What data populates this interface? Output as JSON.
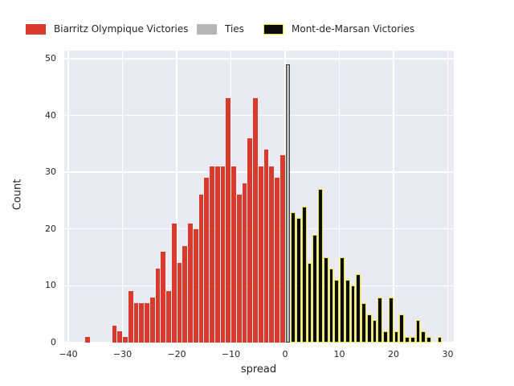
{
  "legend": {
    "items": [
      {
        "label": "Biarritz Olympique Victories"
      },
      {
        "label": "Ties"
      },
      {
        "label": "Mont-de-Marsan Victories"
      }
    ]
  },
  "axes": {
    "xlabel": "spread",
    "ylabel": "Count"
  },
  "chart_data": {
    "type": "bar",
    "subtype": "histogram",
    "title": "",
    "xlabel": "spread",
    "ylabel": "Count",
    "grid": true,
    "legend_position": "top",
    "plot_bg": "#eaeaf2",
    "grid_color": "#ffffff",
    "text_color": "#262626",
    "bin_width": 1,
    "x_is": "bin_left_edge_spread",
    "xlim": [
      -40.7,
      31.1
    ],
    "ylim": [
      0,
      51.4
    ],
    "xticks": [
      {
        "value": -40,
        "label": "−40"
      },
      {
        "value": -30,
        "label": "−30"
      },
      {
        "value": -20,
        "label": "−20"
      },
      {
        "value": -10,
        "label": "−10"
      },
      {
        "value": 0,
        "label": "0"
      },
      {
        "value": 10,
        "label": "10"
      },
      {
        "value": 20,
        "label": "20"
      },
      {
        "value": 30,
        "label": "30"
      }
    ],
    "yticks": [
      {
        "value": 0,
        "label": "0"
      },
      {
        "value": 10,
        "label": "10"
      },
      {
        "value": 20,
        "label": "20"
      },
      {
        "value": 30,
        "label": "30"
      },
      {
        "value": 40,
        "label": "40"
      },
      {
        "value": 50,
        "label": "50"
      }
    ],
    "series": [
      {
        "name": "Biarritz Olympique Victories",
        "fill": "#d83a2b",
        "edge": "#d83a2b",
        "bars": [
          [
            -37,
            1
          ],
          [
            -32,
            3
          ],
          [
            -31,
            2
          ],
          [
            -30,
            1
          ],
          [
            -29,
            9
          ],
          [
            -28,
            7
          ],
          [
            -27,
            7
          ],
          [
            -26,
            7
          ],
          [
            -25,
            8
          ],
          [
            -24,
            13
          ],
          [
            -23,
            16
          ],
          [
            -22,
            9
          ],
          [
            -21,
            21
          ],
          [
            -20,
            14
          ],
          [
            -19,
            17
          ],
          [
            -18,
            21
          ],
          [
            -17,
            20
          ],
          [
            -16,
            26
          ],
          [
            -15,
            29
          ],
          [
            -14,
            31
          ],
          [
            -13,
            31
          ],
          [
            -12,
            31
          ],
          [
            -11,
            43
          ],
          [
            -10,
            31
          ],
          [
            -9,
            26
          ],
          [
            -8,
            28
          ],
          [
            -7,
            36
          ],
          [
            -6,
            43
          ],
          [
            -5,
            31
          ],
          [
            -4,
            34
          ],
          [
            -3,
            31
          ],
          [
            -2,
            29
          ],
          [
            -1,
            33
          ]
        ]
      },
      {
        "name": "Ties",
        "fill": "#b6b6b6",
        "edge": "#3a3a3a",
        "bars": [
          [
            0,
            49
          ]
        ]
      },
      {
        "name": "Mont-de-Marsan Victories",
        "fill": "#0b0b0b",
        "edge": "#e9e331",
        "bars": [
          [
            1,
            23
          ],
          [
            2,
            22
          ],
          [
            3,
            24
          ],
          [
            4,
            14
          ],
          [
            5,
            19
          ],
          [
            6,
            27
          ],
          [
            7,
            15
          ],
          [
            8,
            13
          ],
          [
            9,
            11
          ],
          [
            10,
            15
          ],
          [
            11,
            11
          ],
          [
            12,
            10
          ],
          [
            13,
            12
          ],
          [
            14,
            7
          ],
          [
            15,
            5
          ],
          [
            16,
            4
          ],
          [
            17,
            8
          ],
          [
            18,
            2
          ],
          [
            19,
            8
          ],
          [
            20,
            2
          ],
          [
            21,
            5
          ],
          [
            22,
            1
          ],
          [
            23,
            1
          ],
          [
            24,
            4
          ],
          [
            25,
            2
          ],
          [
            26,
            1
          ],
          [
            28,
            1
          ]
        ]
      }
    ]
  }
}
